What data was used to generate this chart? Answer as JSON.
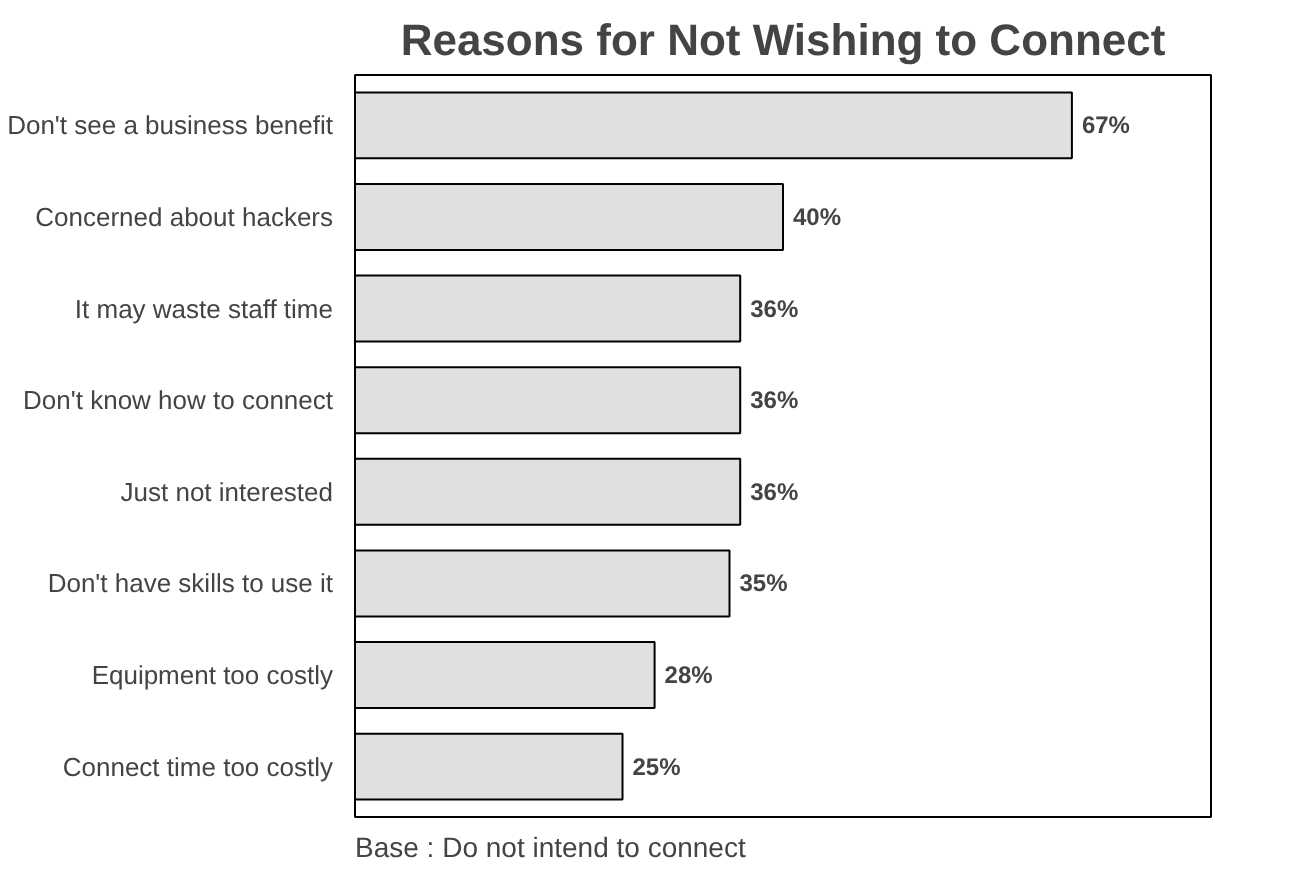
{
  "chart_data": {
    "type": "bar",
    "orientation": "horizontal",
    "title": "Reasons for Not Wishing to Connect",
    "categories": [
      "Don't see a business benefit",
      "Concerned about hackers",
      "It may waste staff time",
      "Don't know how to connect",
      "Just not interested",
      "Don't have skills to use it",
      "Equipment too costly",
      "Connect time too costly"
    ],
    "values": [
      67,
      40,
      36,
      36,
      36,
      35,
      28,
      25
    ],
    "value_labels": [
      "67%",
      "40%",
      "36%",
      "36%",
      "36%",
      "35%",
      "28%",
      "25%"
    ],
    "color": "#e0e0e0",
    "xlim": [
      0,
      80
    ],
    "tick_labels": "y",
    "grid": false,
    "annotations": [
      "Base : Do not intend to connect"
    ]
  }
}
